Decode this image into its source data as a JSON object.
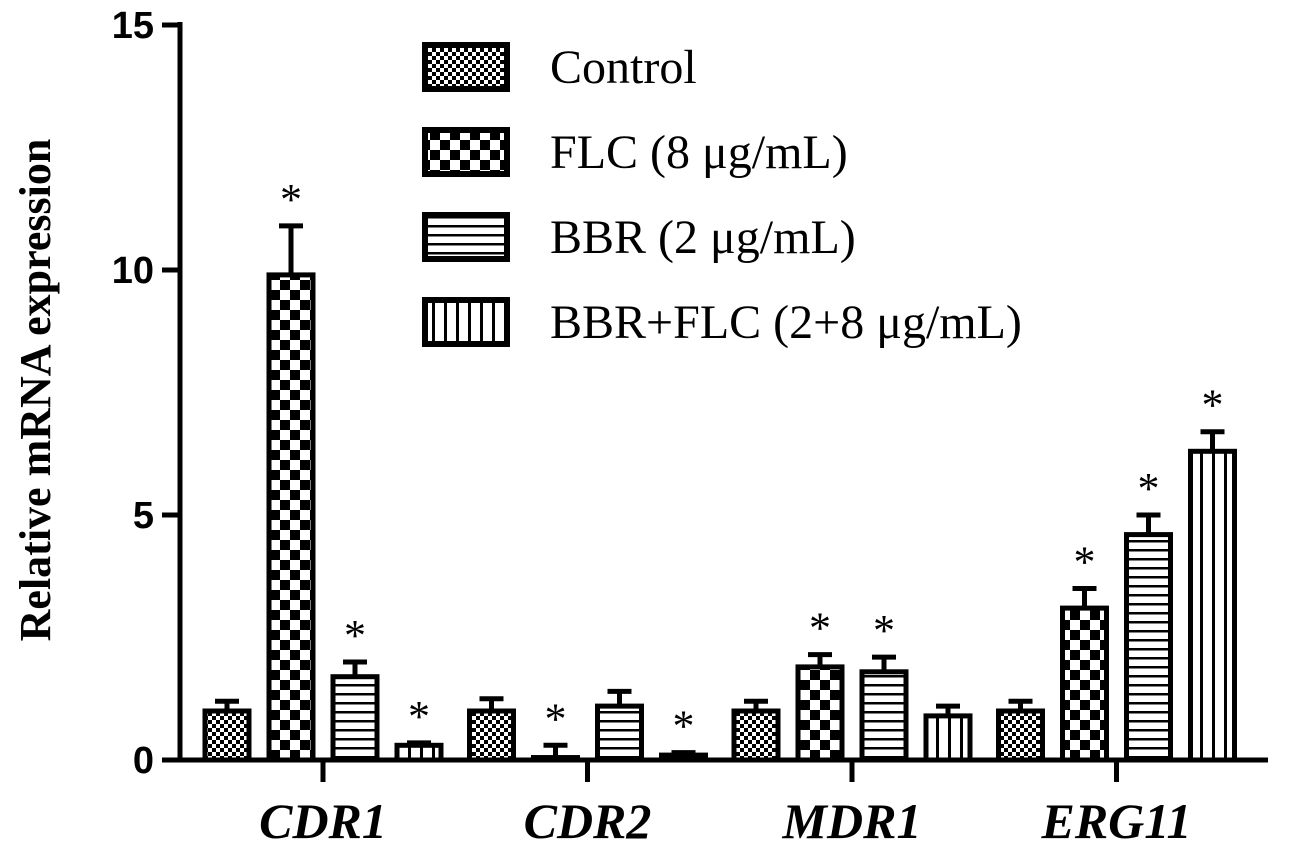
{
  "chart_data": {
    "type": "bar",
    "title": "",
    "xlabel": "",
    "ylabel": "Relative mRNA expression",
    "ylim": [
      0,
      15
    ],
    "yticks": [
      0,
      5,
      10,
      15
    ],
    "categories": [
      "CDR1",
      "CDR2",
      "MDR1",
      "ERG11"
    ],
    "series": [
      {
        "name": "Control",
        "pattern": "fine-checker",
        "values": [
          1.0,
          1.0,
          1.0,
          1.0
        ],
        "errors": [
          0.2,
          0.25,
          0.2,
          0.2
        ],
        "significance": [
          "",
          "",
          "",
          ""
        ]
      },
      {
        "name": "FLC (8 μg/mL)",
        "pattern": "coarse-checker",
        "values": [
          9.9,
          0.05,
          1.9,
          3.1
        ],
        "errors": [
          1.0,
          0.25,
          0.25,
          0.4
        ],
        "significance": [
          "*",
          "*",
          "*",
          "*"
        ]
      },
      {
        "name": "BBR (2 μg/mL)",
        "pattern": "horizontal-lines",
        "values": [
          1.7,
          1.1,
          1.8,
          4.6
        ],
        "errors": [
          0.3,
          0.3,
          0.3,
          0.4
        ],
        "significance": [
          "*",
          "",
          "*",
          "*"
        ]
      },
      {
        "name": "BBR+FLC (2+8 μg/mL)",
        "pattern": "vertical-lines",
        "values": [
          0.3,
          0.1,
          0.9,
          6.3
        ],
        "errors": [
          0.05,
          0.05,
          0.2,
          0.4
        ],
        "significance": [
          "*",
          "*",
          "",
          "*"
        ]
      }
    ],
    "legend_position": "top-right",
    "grid": false
  }
}
